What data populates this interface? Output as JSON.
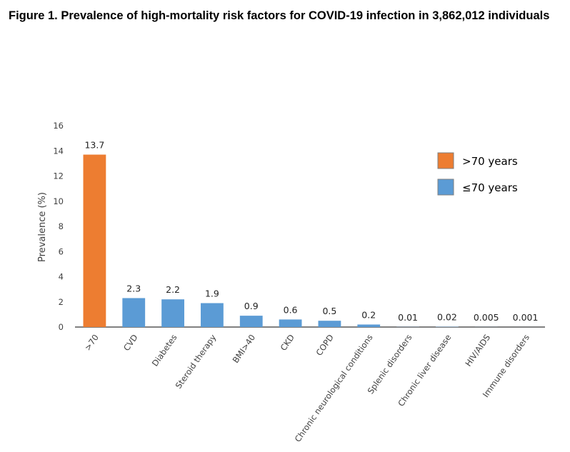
{
  "figure_title": "Figure 1. Prevalence of high-mortality risk factors for COVID-19 infection in 3,862,012 individuals",
  "colors": {
    "older": "#ED7D31",
    "younger": "#5B9BD5",
    "axis": "#000000",
    "text": "#404040"
  },
  "chart_data": {
    "type": "bar",
    "title": "",
    "xlabel": "",
    "ylabel": "Prevalence (%)",
    "ylim": [
      0,
      16
    ],
    "yticks": [
      0,
      2,
      4,
      6,
      8,
      10,
      12,
      14,
      16
    ],
    "grid": false,
    "legend_position": "top-right",
    "legend": [
      {
        "label": ">70 years",
        "color": "#ED7D31"
      },
      {
        "label": "≤70 years",
        "color": "#5B9BD5"
      }
    ],
    "categories": [
      ">70",
      "CVD",
      "Diabetes",
      "Steroid therapy",
      "BMI>40",
      "CKD",
      "COPD",
      "Chronic neurological conditions",
      "Splenic disorders",
      "Chronic liver disease",
      "HIV/AIDS",
      "Immune disorders"
    ],
    "values": [
      13.7,
      2.3,
      2.2,
      1.9,
      0.9,
      0.6,
      0.5,
      0.2,
      0.01,
      0.02,
      0.005,
      0.001
    ],
    "value_labels": [
      "13.7",
      "2.3",
      "2.2",
      "1.9",
      "0.9",
      "0.6",
      "0.5",
      "0.2",
      "0.01",
      "0.02",
      "0.005",
      "0.001"
    ],
    "series_of_bar": [
      ">70 years",
      "≤70 years",
      "≤70 years",
      "≤70 years",
      "≤70 years",
      "≤70 years",
      "≤70 years",
      "≤70 years",
      "≤70 years",
      "≤70 years",
      "≤70 years",
      "≤70 years"
    ]
  }
}
